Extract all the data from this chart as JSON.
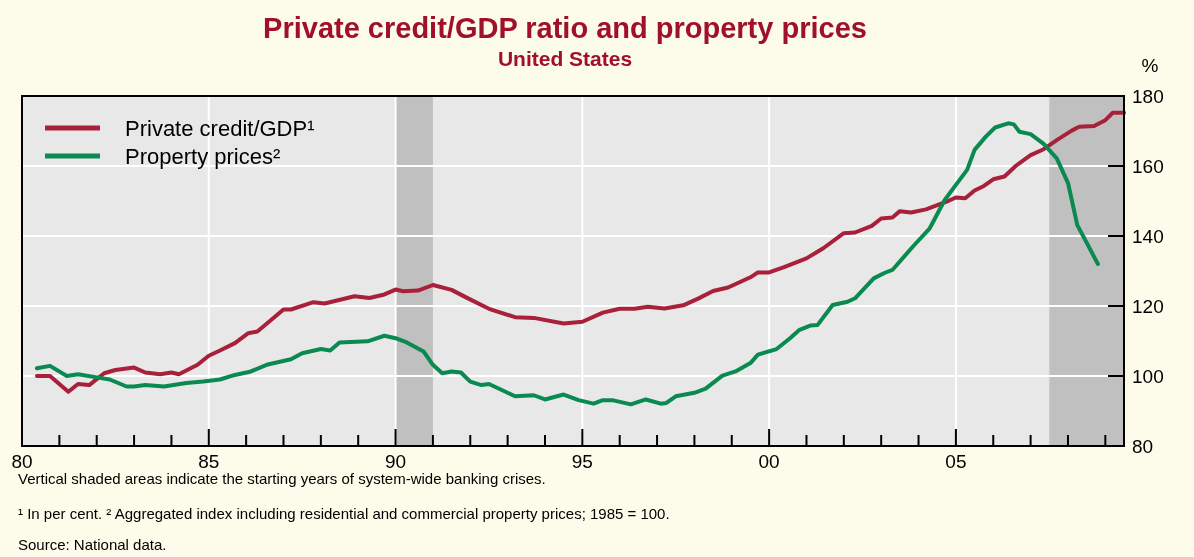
{
  "chart_data": {
    "type": "line",
    "title": "Private credit/GDP ratio and property prices",
    "subtitle": "United States",
    "ylabel": "%",
    "annotations": [
      "Vertical shaded areas indicate the starting years of system-wide banking crises.",
      "¹ In per cent.   ² Aggregated index including residential and commercial property prices; 1985 = 100.",
      "Source: National data."
    ],
    "xlim": [
      1980,
      2009.5
    ],
    "xticks": [
      {
        "value": 1980,
        "label": "80"
      },
      {
        "value": 1981,
        "label": null
      },
      {
        "value": 1982,
        "label": null
      },
      {
        "value": 1983,
        "label": null
      },
      {
        "value": 1984,
        "label": null
      },
      {
        "value": 1985,
        "label": "85"
      },
      {
        "value": 1986,
        "label": null
      },
      {
        "value": 1987,
        "label": null
      },
      {
        "value": 1988,
        "label": null
      },
      {
        "value": 1989,
        "label": null
      },
      {
        "value": 1990,
        "label": "90"
      },
      {
        "value": 1991,
        "label": null
      },
      {
        "value": 1992,
        "label": null
      },
      {
        "value": 1993,
        "label": null
      },
      {
        "value": 1994,
        "label": null
      },
      {
        "value": 1995,
        "label": "95"
      },
      {
        "value": 1996,
        "label": null
      },
      {
        "value": 1997,
        "label": null
      },
      {
        "value": 1998,
        "label": null
      },
      {
        "value": 1999,
        "label": null
      },
      {
        "value": 2000,
        "label": "00"
      },
      {
        "value": 2001,
        "label": null
      },
      {
        "value": 2002,
        "label": null
      },
      {
        "value": 2003,
        "label": null
      },
      {
        "value": 2004,
        "label": null
      },
      {
        "value": 2005,
        "label": "05"
      },
      {
        "value": 2006,
        "label": null
      },
      {
        "value": 2007,
        "label": null
      },
      {
        "value": 2008,
        "label": null
      },
      {
        "value": 2009,
        "label": null
      }
    ],
    "ylim": [
      80,
      180
    ],
    "yticks": [
      80,
      100,
      120,
      140,
      160,
      180
    ],
    "grid": true,
    "legend": "top left",
    "bands": [
      {
        "axis": "x",
        "from": 1990,
        "to": 1991,
        "color": "#c0c0c0"
      },
      {
        "axis": "x",
        "from": 2007.5,
        "to": 2009.5,
        "color": "#c0c0c0"
      }
    ],
    "series": [
      {
        "name": "Private credit/GDP¹",
        "color": "#a8203a",
        "x": [
          1980.4,
          1980.75,
          1981.24,
          1981.5,
          1981.8,
          1982.2,
          1982.5,
          1983.0,
          1983.3,
          1983.7,
          1984.0,
          1984.2,
          1984.7,
          1985.0,
          1985.3,
          1985.7,
          1986.05,
          1986.3,
          1986.7,
          1987.0,
          1987.2,
          1987.6,
          1987.8,
          1988.1,
          1988.6,
          1988.9,
          1989.3,
          1989.7,
          1990.0,
          1990.2,
          1990.6,
          1991.0,
          1991.5,
          1991.9,
          1992.5,
          1993.2,
          1993.7,
          1994.5,
          1995.0,
          1995.55,
          1996.0,
          1996.4,
          1996.75,
          1997.2,
          1997.7,
          1998.1,
          1998.5,
          1998.9,
          1999.5,
          1999.7,
          2000.0,
          2000.4,
          2001.0,
          2001.45,
          2002.0,
          2002.3,
          2002.75,
          2003.0,
          2003.3,
          2003.5,
          2003.8,
          2004.2,
          2004.75,
          2005.0,
          2005.25,
          2005.5,
          2005.75,
          2006.0,
          2006.3,
          2006.6,
          2007.0,
          2007.35,
          2007.7,
          2008.1,
          2008.3,
          2008.7,
          2009.0,
          2009.2,
          2009.5
        ],
        "values": [
          100,
          100,
          95.5,
          97.7,
          97.4,
          100.8,
          101.7,
          102.4,
          101,
          100.5,
          101,
          100.5,
          103.2,
          105.8,
          107.3,
          109.4,
          112.2,
          112.7,
          116.3,
          119,
          119,
          120.4,
          121.1,
          120.7,
          122,
          122.8,
          122.3,
          123.3,
          124.7,
          124.2,
          124.4,
          126,
          124.6,
          122.4,
          119.2,
          116.8,
          116.6,
          115,
          115.5,
          118.1,
          119.2,
          119.2,
          119.8,
          119.3,
          120.2,
          122.1,
          124.3,
          125.3,
          128.2,
          129.6,
          129.6,
          131.1,
          133.6,
          136.5,
          140.8,
          141,
          142.9,
          145,
          145.3,
          147.1,
          146.7,
          147.6,
          149.8,
          151,
          150.8,
          153,
          154.3,
          156.2,
          157,
          160,
          163.1,
          164.8,
          167.4,
          170.1,
          171.2,
          171.4,
          173.1,
          175.2,
          175.2
        ]
      },
      {
        "name": "Property prices²",
        "color": "#0a8a50",
        "x": [
          1980.4,
          1980.75,
          1981.2,
          1981.5,
          1982.0,
          1982.35,
          1982.8,
          1983.0,
          1983.3,
          1983.8,
          1984.4,
          1984.85,
          1985.3,
          1985.7,
          1986.1,
          1986.55,
          1987.2,
          1987.5,
          1988.0,
          1988.25,
          1988.5,
          1989.25,
          1989.7,
          1990.0,
          1990.3,
          1990.75,
          1991.0,
          1991.25,
          1991.5,
          1991.75,
          1992.0,
          1992.3,
          1992.5,
          1992.8,
          1993.2,
          1993.7,
          1994.0,
          1994.5,
          1994.9,
          1995.3,
          1995.55,
          1995.8,
          1996.3,
          1996.7,
          1997.1,
          1997.25,
          1997.5,
          1998.0,
          1998.3,
          1998.75,
          1999.1,
          1999.5,
          1999.7,
          2000.2,
          2000.56,
          2000.8,
          2001.1,
          2001.3,
          2001.7,
          2002.1,
          2002.3,
          2002.8,
          2003.1,
          2003.3,
          2003.85,
          2004.3,
          2004.7,
          2005.0,
          2005.3,
          2005.5,
          2005.8,
          2006.05,
          2006.4,
          2006.55,
          2006.7,
          2007.0,
          2007.35,
          2007.7,
          2008.0,
          2008.25,
          2008.5,
          2008.8
        ],
        "values": [
          102.2,
          102.9,
          100,
          100.5,
          99.6,
          99,
          97,
          97,
          97.4,
          97,
          98,
          98.4,
          99,
          100.3,
          101.2,
          103.2,
          104.8,
          106.5,
          107.7,
          107.3,
          109.6,
          109.9,
          111.5,
          110.8,
          109.6,
          107,
          103.2,
          100.8,
          101.3,
          101,
          98.4,
          97.4,
          97.7,
          96.2,
          94.2,
          94.5,
          93.3,
          94.7,
          93.1,
          92.1,
          93.1,
          93.1,
          91.9,
          93.3,
          92.1,
          92.3,
          94.2,
          95.2,
          96.4,
          100.1,
          101.3,
          103.7,
          106.1,
          107.7,
          110.8,
          113.1,
          114.4,
          114.6,
          120.3,
          121.2,
          122.2,
          127.9,
          129.5,
          130.3,
          137,
          142.2,
          150.3,
          154.6,
          158.9,
          164.6,
          168.4,
          171,
          172.2,
          171.9,
          169.8,
          169.1,
          166.3,
          162.2,
          155.2,
          143.1,
          138.1,
          132
        ]
      }
    ]
  }
}
